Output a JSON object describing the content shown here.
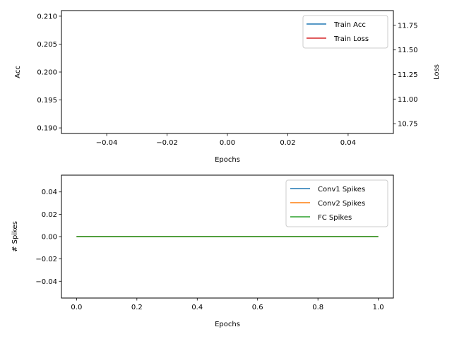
{
  "chart_data": [
    {
      "type": "line",
      "xlabel": "Epochs",
      "ylabel": "Acc",
      "y2label": "Loss",
      "xlim": [
        -0.055,
        0.055
      ],
      "ylim": [
        0.189,
        0.211
      ],
      "y2lim": [
        10.65,
        11.9
      ],
      "xticks": [
        "−0.04",
        "−0.02",
        "0.00",
        "0.02",
        "0.04"
      ],
      "xtick_values": [
        -0.04,
        -0.02,
        0.0,
        0.02,
        0.04
      ],
      "yticks": [
        "0.190",
        "0.195",
        "0.200",
        "0.205",
        "0.210"
      ],
      "ytick_values": [
        0.19,
        0.195,
        0.2,
        0.205,
        0.21
      ],
      "y2ticks": [
        "10.75",
        "11.00",
        "11.25",
        "11.50",
        "11.75"
      ],
      "y2tick_values": [
        10.75,
        11.0,
        11.25,
        11.5,
        11.75
      ],
      "grid": false,
      "legend_position": "top-right",
      "series": [
        {
          "name": "Train Acc",
          "color": "#1f77b4",
          "axis": "left",
          "x": [],
          "y": []
        },
        {
          "name": "Train Loss",
          "color": "#d62728",
          "axis": "right",
          "x": [],
          "y": []
        }
      ]
    },
    {
      "type": "line",
      "xlabel": "Epochs",
      "ylabel": "# Spikes",
      "xlim": [
        -0.05,
        1.05
      ],
      "ylim": [
        -0.055,
        0.055
      ],
      "xticks": [
        "0.0",
        "0.2",
        "0.4",
        "0.6",
        "0.8",
        "1.0"
      ],
      "xtick_values": [
        0.0,
        0.2,
        0.4,
        0.6,
        0.8,
        1.0
      ],
      "yticks": [
        "−0.04",
        "−0.02",
        "0.00",
        "0.02",
        "0.04"
      ],
      "ytick_values": [
        -0.04,
        -0.02,
        0.0,
        0.02,
        0.04
      ],
      "grid": false,
      "legend_position": "top-right",
      "series": [
        {
          "name": "Conv1 Spikes",
          "color": "#1f77b4",
          "x": [
            0,
            1
          ],
          "y": [
            0,
            0
          ]
        },
        {
          "name": "Conv2 Spikes",
          "color": "#ff7f0e",
          "x": [
            0,
            1
          ],
          "y": [
            0,
            0
          ]
        },
        {
          "name": "FC Spikes",
          "color": "#2ca02c",
          "x": [
            0,
            1
          ],
          "y": [
            0,
            0
          ]
        }
      ]
    }
  ]
}
